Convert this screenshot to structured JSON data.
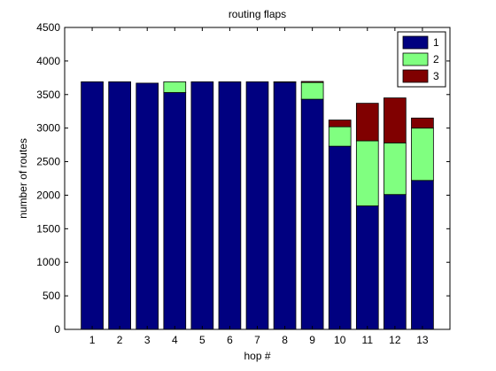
{
  "chart_data": {
    "type": "bar",
    "stacked": true,
    "title": "routing flaps",
    "xlabel": "hop #",
    "ylabel": "number of routes",
    "categories": [
      "1",
      "2",
      "3",
      "4",
      "5",
      "6",
      "7",
      "8",
      "9",
      "10",
      "11",
      "12",
      "13"
    ],
    "ylim": [
      0,
      4500
    ],
    "yticks": [
      0,
      500,
      1000,
      1500,
      2000,
      2500,
      3000,
      3500,
      4000,
      4500
    ],
    "grid": false,
    "legend_position": "top-right",
    "series": [
      {
        "name": "1",
        "color": "#000080",
        "values": [
          3690,
          3690,
          3670,
          3530,
          3690,
          3690,
          3690,
          3685,
          3430,
          2730,
          1840,
          2010,
          2220
        ]
      },
      {
        "name": "2",
        "color": "#80ff80",
        "values": [
          0,
          0,
          0,
          160,
          0,
          0,
          0,
          5,
          250,
          290,
          970,
          770,
          780
        ]
      },
      {
        "name": "3",
        "color": "#800000",
        "values": [
          0,
          0,
          0,
          0,
          0,
          0,
          0,
          0,
          15,
          100,
          560,
          670,
          150
        ]
      }
    ]
  }
}
